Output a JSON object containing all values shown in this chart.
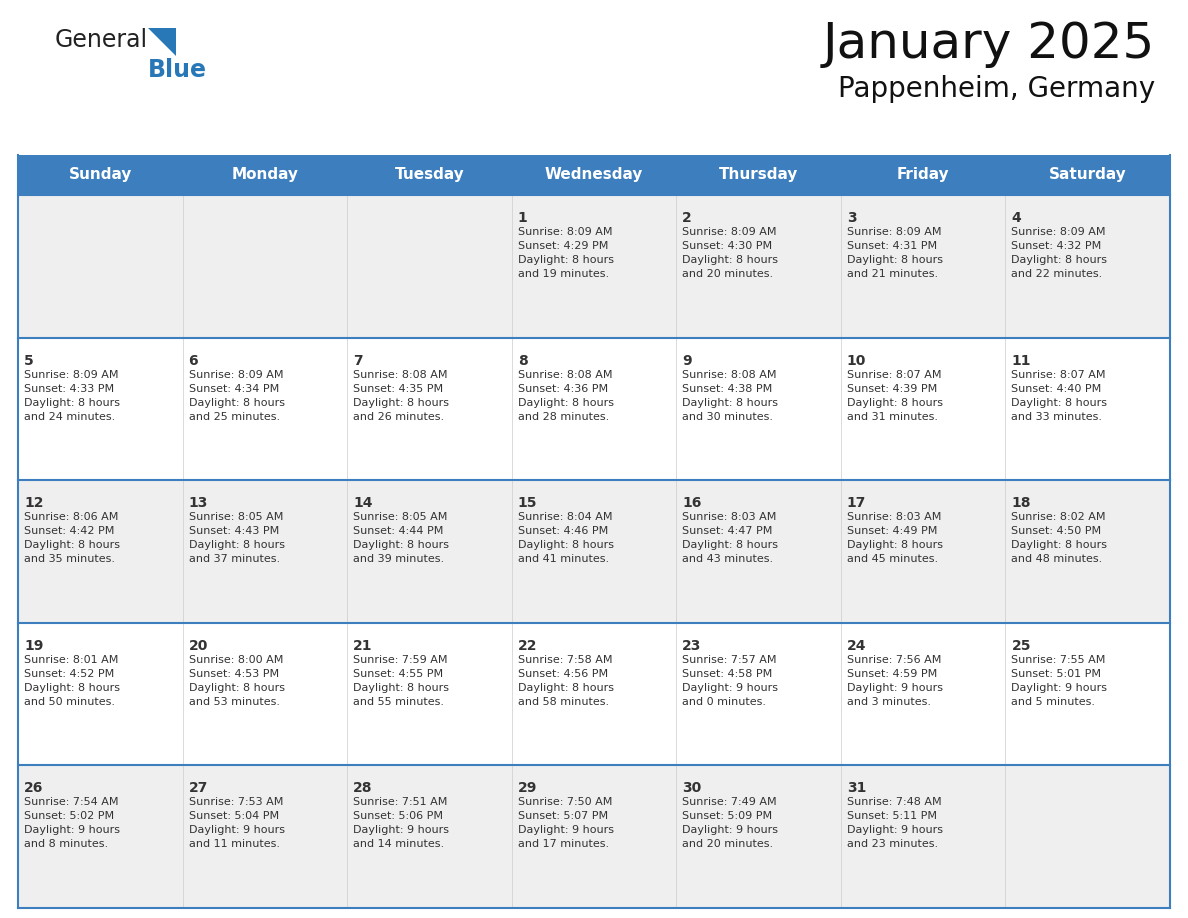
{
  "title": "January 2025",
  "subtitle": "Pappenheim, Germany",
  "header_color": "#3d7ebf",
  "header_text_color": "#FFFFFF",
  "cell_bg_even": "#EFEFEF",
  "cell_bg_odd": "#FFFFFF",
  "border_color": "#3d7ebf",
  "text_color": "#333333",
  "days_of_week": [
    "Sunday",
    "Monday",
    "Tuesday",
    "Wednesday",
    "Thursday",
    "Friday",
    "Saturday"
  ],
  "weeks": [
    [
      {
        "day": "",
        "info": ""
      },
      {
        "day": "",
        "info": ""
      },
      {
        "day": "",
        "info": ""
      },
      {
        "day": "1",
        "info": "Sunrise: 8:09 AM\nSunset: 4:29 PM\nDaylight: 8 hours\nand 19 minutes."
      },
      {
        "day": "2",
        "info": "Sunrise: 8:09 AM\nSunset: 4:30 PM\nDaylight: 8 hours\nand 20 minutes."
      },
      {
        "day": "3",
        "info": "Sunrise: 8:09 AM\nSunset: 4:31 PM\nDaylight: 8 hours\nand 21 minutes."
      },
      {
        "day": "4",
        "info": "Sunrise: 8:09 AM\nSunset: 4:32 PM\nDaylight: 8 hours\nand 22 minutes."
      }
    ],
    [
      {
        "day": "5",
        "info": "Sunrise: 8:09 AM\nSunset: 4:33 PM\nDaylight: 8 hours\nand 24 minutes."
      },
      {
        "day": "6",
        "info": "Sunrise: 8:09 AM\nSunset: 4:34 PM\nDaylight: 8 hours\nand 25 minutes."
      },
      {
        "day": "7",
        "info": "Sunrise: 8:08 AM\nSunset: 4:35 PM\nDaylight: 8 hours\nand 26 minutes."
      },
      {
        "day": "8",
        "info": "Sunrise: 8:08 AM\nSunset: 4:36 PM\nDaylight: 8 hours\nand 28 minutes."
      },
      {
        "day": "9",
        "info": "Sunrise: 8:08 AM\nSunset: 4:38 PM\nDaylight: 8 hours\nand 30 minutes."
      },
      {
        "day": "10",
        "info": "Sunrise: 8:07 AM\nSunset: 4:39 PM\nDaylight: 8 hours\nand 31 minutes."
      },
      {
        "day": "11",
        "info": "Sunrise: 8:07 AM\nSunset: 4:40 PM\nDaylight: 8 hours\nand 33 minutes."
      }
    ],
    [
      {
        "day": "12",
        "info": "Sunrise: 8:06 AM\nSunset: 4:42 PM\nDaylight: 8 hours\nand 35 minutes."
      },
      {
        "day": "13",
        "info": "Sunrise: 8:05 AM\nSunset: 4:43 PM\nDaylight: 8 hours\nand 37 minutes."
      },
      {
        "day": "14",
        "info": "Sunrise: 8:05 AM\nSunset: 4:44 PM\nDaylight: 8 hours\nand 39 minutes."
      },
      {
        "day": "15",
        "info": "Sunrise: 8:04 AM\nSunset: 4:46 PM\nDaylight: 8 hours\nand 41 minutes."
      },
      {
        "day": "16",
        "info": "Sunrise: 8:03 AM\nSunset: 4:47 PM\nDaylight: 8 hours\nand 43 minutes."
      },
      {
        "day": "17",
        "info": "Sunrise: 8:03 AM\nSunset: 4:49 PM\nDaylight: 8 hours\nand 45 minutes."
      },
      {
        "day": "18",
        "info": "Sunrise: 8:02 AM\nSunset: 4:50 PM\nDaylight: 8 hours\nand 48 minutes."
      }
    ],
    [
      {
        "day": "19",
        "info": "Sunrise: 8:01 AM\nSunset: 4:52 PM\nDaylight: 8 hours\nand 50 minutes."
      },
      {
        "day": "20",
        "info": "Sunrise: 8:00 AM\nSunset: 4:53 PM\nDaylight: 8 hours\nand 53 minutes."
      },
      {
        "day": "21",
        "info": "Sunrise: 7:59 AM\nSunset: 4:55 PM\nDaylight: 8 hours\nand 55 minutes."
      },
      {
        "day": "22",
        "info": "Sunrise: 7:58 AM\nSunset: 4:56 PM\nDaylight: 8 hours\nand 58 minutes."
      },
      {
        "day": "23",
        "info": "Sunrise: 7:57 AM\nSunset: 4:58 PM\nDaylight: 9 hours\nand 0 minutes."
      },
      {
        "day": "24",
        "info": "Sunrise: 7:56 AM\nSunset: 4:59 PM\nDaylight: 9 hours\nand 3 minutes."
      },
      {
        "day": "25",
        "info": "Sunrise: 7:55 AM\nSunset: 5:01 PM\nDaylight: 9 hours\nand 5 minutes."
      }
    ],
    [
      {
        "day": "26",
        "info": "Sunrise: 7:54 AM\nSunset: 5:02 PM\nDaylight: 9 hours\nand 8 minutes."
      },
      {
        "day": "27",
        "info": "Sunrise: 7:53 AM\nSunset: 5:04 PM\nDaylight: 9 hours\nand 11 minutes."
      },
      {
        "day": "28",
        "info": "Sunrise: 7:51 AM\nSunset: 5:06 PM\nDaylight: 9 hours\nand 14 minutes."
      },
      {
        "day": "29",
        "info": "Sunrise: 7:50 AM\nSunset: 5:07 PM\nDaylight: 9 hours\nand 17 minutes."
      },
      {
        "day": "30",
        "info": "Sunrise: 7:49 AM\nSunset: 5:09 PM\nDaylight: 9 hours\nand 20 minutes."
      },
      {
        "day": "31",
        "info": "Sunrise: 7:48 AM\nSunset: 5:11 PM\nDaylight: 9 hours\nand 23 minutes."
      },
      {
        "day": "",
        "info": ""
      }
    ]
  ],
  "logo_text1": "General",
  "logo_text2": "Blue",
  "logo_color1": "#222222",
  "logo_color2": "#2878b8",
  "title_fontsize": 36,
  "subtitle_fontsize": 20,
  "header_fontsize": 11,
  "day_number_fontsize": 10,
  "info_fontsize": 8
}
